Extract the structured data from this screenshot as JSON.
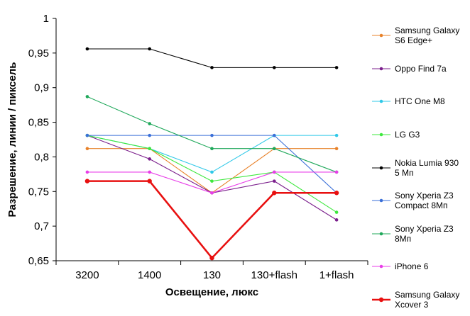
{
  "chart_data": {
    "type": "line",
    "title": "",
    "xlabel": "Освещение,  люкс",
    "ylabel": "Разрешение,  линии / пиксель",
    "categories": [
      "3200",
      "1400",
      "130",
      "130+flash",
      "1+flash"
    ],
    "ylim": [
      0.65,
      1
    ],
    "yticks": [
      {
        "value": 0.65,
        "label": "0,65"
      },
      {
        "value": 0.7,
        "label": "0,7"
      },
      {
        "value": 0.75,
        "label": "0,75"
      },
      {
        "value": 0.8,
        "label": "0,8"
      },
      {
        "value": 0.85,
        "label": "0,85"
      },
      {
        "value": 0.9,
        "label": "0,9"
      },
      {
        "value": 0.95,
        "label": "0,95"
      },
      {
        "value": 1,
        "label": "1"
      }
    ],
    "grid": false,
    "legend": "right",
    "series": [
      {
        "name": [
          "Samsung Galaxy",
          "S6 Edge+"
        ],
        "color": "#e8822a",
        "values": [
          0.812,
          0.812,
          0.748,
          0.812,
          0.812
        ]
      },
      {
        "name": [
          "Oppo Find 7a"
        ],
        "color": "#7b1f8c",
        "values": [
          0.831,
          0.797,
          0.748,
          0.765,
          0.709
        ]
      },
      {
        "name": [
          "HTC One M8"
        ],
        "color": "#2fc8e8",
        "values": [
          0.831,
          0.812,
          0.778,
          0.831,
          0.831
        ]
      },
      {
        "name": [
          "LG G3"
        ],
        "color": "#3ee83e",
        "values": [
          0.831,
          0.812,
          0.765,
          0.778,
          0.72
        ]
      },
      {
        "name": [
          "Nokia Lumia 930",
          "5 Мп"
        ],
        "color": "#000000",
        "values": [
          0.956,
          0.956,
          0.929,
          0.929,
          0.929
        ]
      },
      {
        "name": [
          "Sony Xperia Z3",
          "Compact 8Мп"
        ],
        "color": "#3a6fd8",
        "values": [
          0.831,
          0.831,
          0.831,
          0.831,
          0.748
        ]
      },
      {
        "name": [
          "Sony Xperia Z3",
          "8Мп"
        ],
        "color": "#1fa85a",
        "values": [
          0.887,
          0.848,
          0.812,
          0.812,
          0.778
        ]
      },
      {
        "name": [
          "iPhone 6"
        ],
        "color": "#e83ee8",
        "values": [
          0.778,
          0.778,
          0.748,
          0.778,
          0.778
        ]
      },
      {
        "name": [
          "Samsung Galaxy",
          "Xcover 3"
        ],
        "color": "#e81010",
        "bold": true,
        "values": [
          0.765,
          0.765,
          0.654,
          0.748,
          0.748
        ]
      }
    ]
  }
}
